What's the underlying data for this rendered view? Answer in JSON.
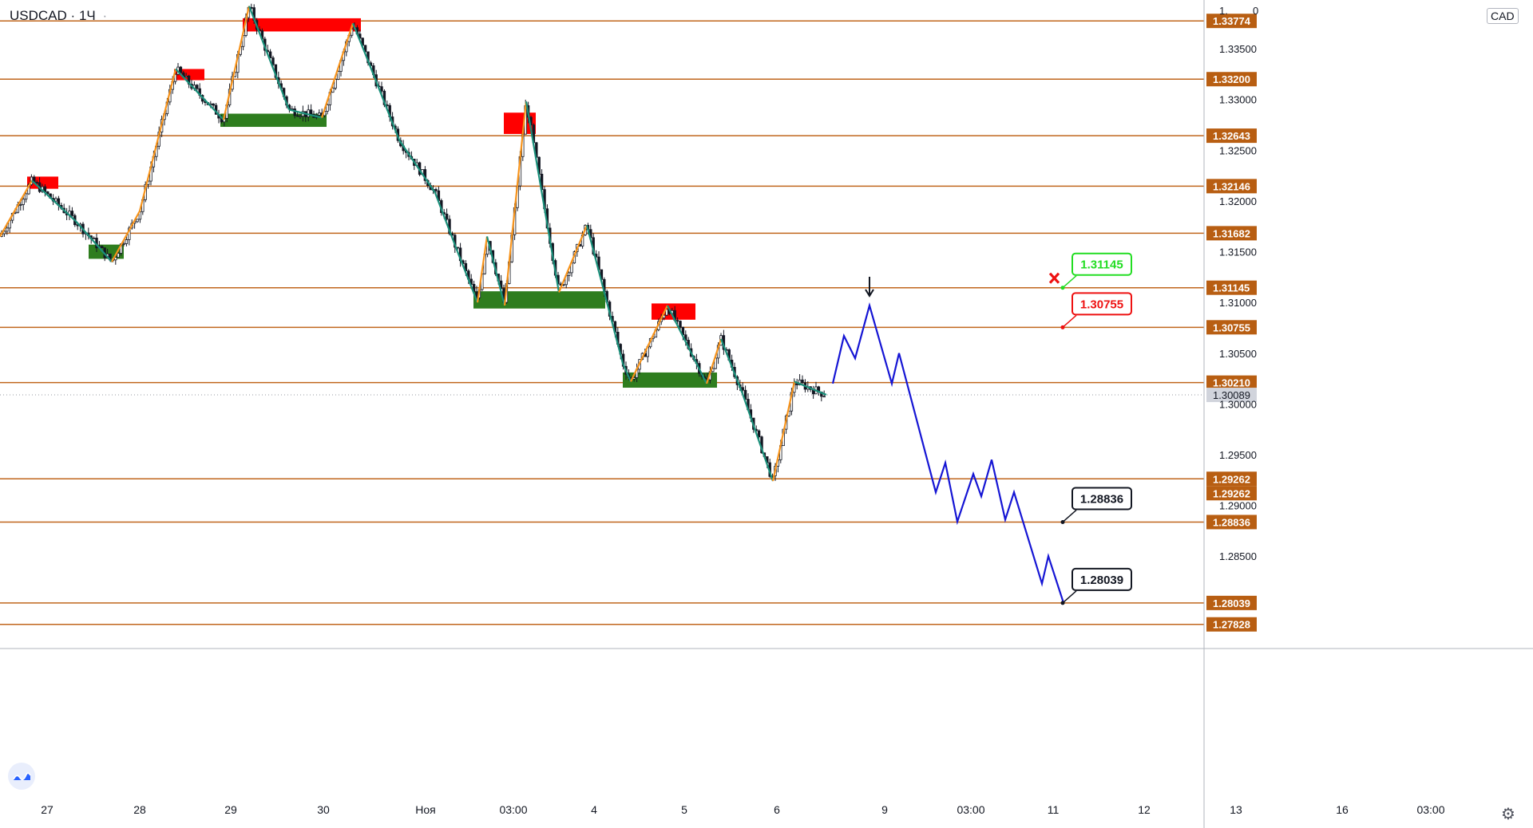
{
  "header": {
    "symbol": "USDCAD",
    "separator": "·",
    "interval": "1Ч",
    "dot": "·"
  },
  "currency_badge": "CAD",
  "icons": {
    "logo": "tradingview-logo-icon",
    "settings": "gear-icon",
    "cancel_marker": "cross-icon",
    "arrow_marker": "arrow-down-icon"
  },
  "colors": {
    "level_line": "#c0661c",
    "level_label_bg": "#b85e12",
    "supply_zone": "#ff0000",
    "demand_zone": "#2e7d1e",
    "zigzag_up": "#f7931a",
    "zigzag_down": "#1a8f7a",
    "forecast": "#1515d4",
    "candles": "#131722"
  },
  "chart_data": {
    "type": "line",
    "symbol": "USDCAD",
    "interval": "1Ч",
    "y_axis": {
      "range": [
        1.2759,
        1.3398
      ],
      "tick_labels": [
        "1.33500",
        "1.33000",
        "1.32500",
        "1.32000",
        "1.31500",
        "1.31000",
        "1.30500",
        "1.30000",
        "1.29500",
        "1.29000",
        "1.28500"
      ],
      "top_partial_label": "1.",
      "top_partial_label_right": "0",
      "current_price": "1.30089"
    },
    "x_axis": {
      "tick_labels": [
        "27",
        "28",
        "29",
        "30",
        "Ноя",
        "03:00",
        "4",
        "5",
        "6",
        "9",
        "03:00",
        "11",
        "12",
        "13",
        "16",
        "03:00"
      ]
    },
    "levels": [
      "1.33774",
      "1.33200",
      "1.32643",
      "1.32146",
      "1.31682",
      "1.31145",
      "1.30755",
      "1.30210",
      "1.29262",
      "1.29262",
      "1.28836",
      "1.28039",
      "1.27828"
    ],
    "callouts": [
      {
        "text": "1.31145",
        "color": "#22dd22",
        "cancelled": true
      },
      {
        "text": "1.30755",
        "color": "#ee1111",
        "cancelled": false
      },
      {
        "text": "1.28836",
        "color": "#131722",
        "cancelled": false
      },
      {
        "text": "1.28039",
        "color": "#131722",
        "cancelled": false
      }
    ],
    "zones": [
      {
        "kind": "supply",
        "x": [
          34,
          73
        ],
        "y": [
          1.3212,
          1.3224
        ]
      },
      {
        "kind": "supply",
        "x": [
          218,
          256
        ],
        "y": [
          1.3319,
          1.333
        ]
      },
      {
        "kind": "supply",
        "x": [
          304,
          452
        ],
        "y": [
          1.3367,
          1.338
        ]
      },
      {
        "kind": "supply",
        "x": [
          631,
          671
        ],
        "y": [
          1.3266,
          1.3287
        ]
      },
      {
        "kind": "supply",
        "x": [
          816,
          871
        ],
        "y": [
          1.3083,
          1.3099
        ]
      },
      {
        "kind": "demand",
        "x": [
          111,
          155
        ],
        "y": [
          1.3143,
          1.3157
        ]
      },
      {
        "kind": "demand",
        "x": [
          276,
          409
        ],
        "y": [
          1.3273,
          1.3286
        ]
      },
      {
        "kind": "demand",
        "x": [
          593,
          758
        ],
        "y": [
          1.3094,
          1.3111
        ]
      },
      {
        "kind": "demand",
        "x": [
          780,
          898
        ],
        "y": [
          1.3016,
          1.3031
        ]
      }
    ],
    "price_path": [
      [
        0,
        1.3165
      ],
      [
        40,
        1.322
      ],
      [
        95,
        1.318
      ],
      [
        140,
        1.314
      ],
      [
        175,
        1.319
      ],
      [
        220,
        1.333
      ],
      [
        280,
        1.328
      ],
      [
        312,
        1.3392
      ],
      [
        362,
        1.329
      ],
      [
        403,
        1.3282
      ],
      [
        442,
        1.3375
      ],
      [
        460,
        1.334
      ],
      [
        500,
        1.326
      ],
      [
        545,
        1.3208
      ],
      [
        573,
        1.315
      ],
      [
        598,
        1.31
      ],
      [
        610,
        1.3165
      ],
      [
        632,
        1.3097
      ],
      [
        659,
        1.3298
      ],
      [
        700,
        1.311
      ],
      [
        735,
        1.3176
      ],
      [
        780,
        1.304
      ],
      [
        790,
        1.3022
      ],
      [
        836,
        1.3097
      ],
      [
        885,
        1.302
      ],
      [
        903,
        1.3064
      ],
      [
        930,
        1.301
      ],
      [
        968,
        1.2924
      ],
      [
        995,
        1.3022
      ],
      [
        1035,
        1.3009
      ]
    ],
    "forecast_path": [
      [
        1043,
        1.302
      ],
      [
        1057,
        1.3067
      ],
      [
        1071,
        1.3045
      ],
      [
        1089,
        1.3097
      ],
      [
        1117,
        1.302
      ],
      [
        1126,
        1.305
      ],
      [
        1172,
        1.2913
      ],
      [
        1184,
        1.2942
      ],
      [
        1199,
        1.2884
      ],
      [
        1219,
        1.2931
      ],
      [
        1229,
        1.2909
      ],
      [
        1242,
        1.2945
      ],
      [
        1259,
        1.2886
      ],
      [
        1270,
        1.2913
      ],
      [
        1305,
        1.2823
      ],
      [
        1313,
        1.285
      ],
      [
        1332,
        1.2804
      ]
    ]
  }
}
